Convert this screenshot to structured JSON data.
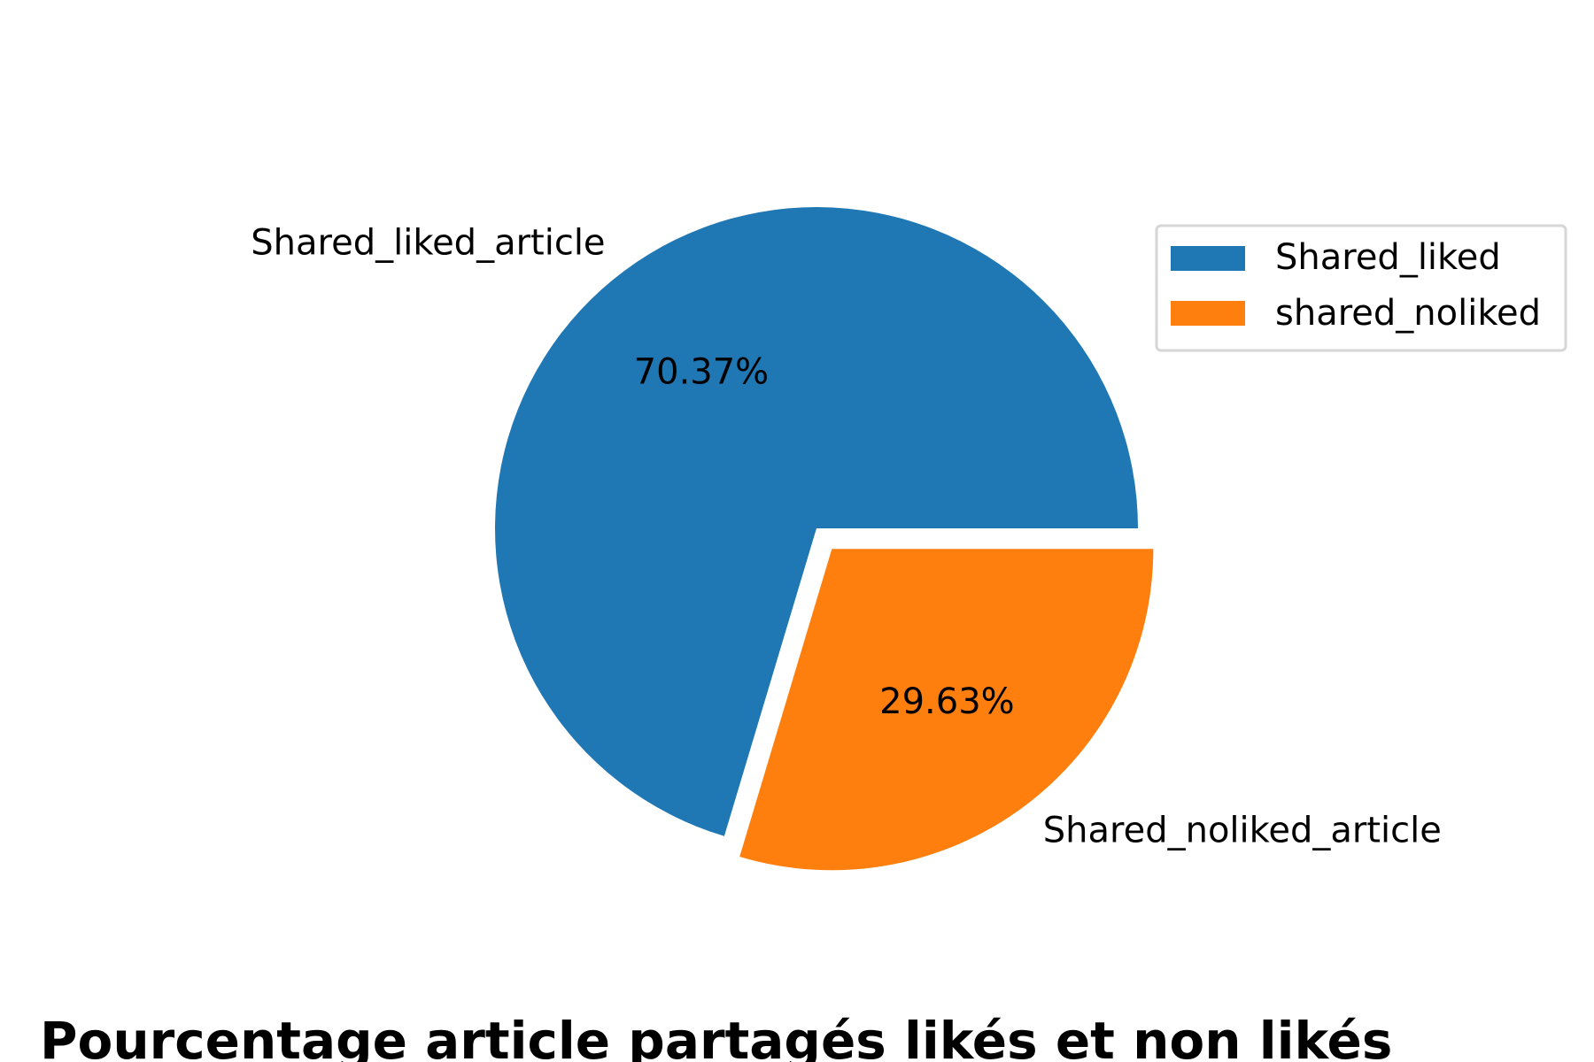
{
  "chart_data": {
    "type": "pie",
    "title": "Pourcentage article partagés likés et non likés",
    "slices": [
      {
        "label": "Shared_liked_article",
        "legend": "Shared_liked",
        "percent": 70.37,
        "percent_label": "70.37%",
        "color": "#1f77b4",
        "exploded": false
      },
      {
        "label": "Shared_noliked_article",
        "legend": "shared_noliked",
        "percent": 29.63,
        "percent_label": "29.63%",
        "color": "#ff7f0e",
        "exploded": true
      }
    ],
    "start_angle_deg": 0,
    "direction": "counterclockwise",
    "legend_placement": "upper-right"
  }
}
